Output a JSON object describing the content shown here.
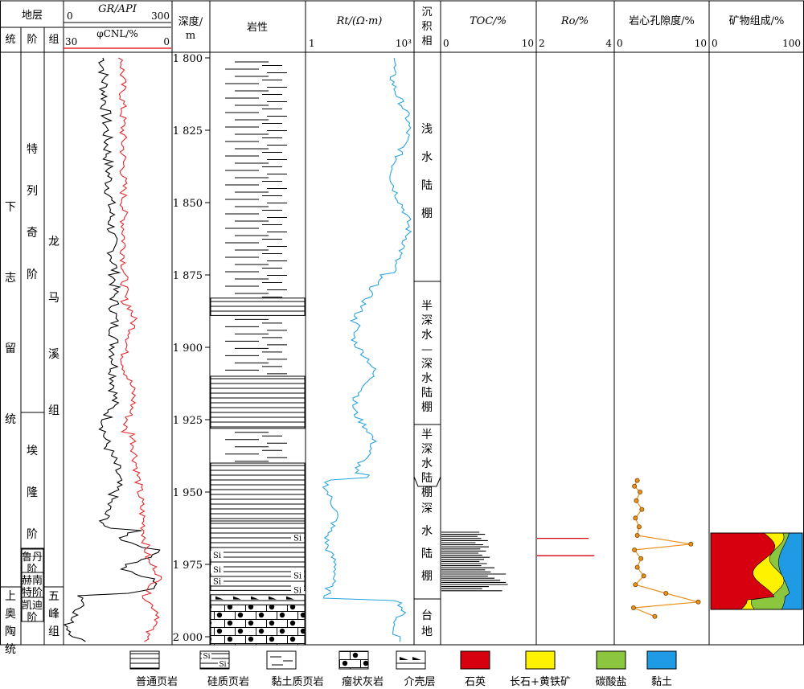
{
  "header": {
    "stratum": "地层",
    "series_col": "统",
    "stage_col": "阶",
    "formation_col": "组",
    "gr_label": "GR/API",
    "gr_min": "0",
    "gr_max": "300",
    "cnl_label": "φCNL/%",
    "cnl_min": "30",
    "cnl_max": "0",
    "depth_label_1": "深度/",
    "depth_label_2": "m",
    "lithology": "岩性",
    "rt_label": "Rt/(Ω·m)",
    "rt_min": "1",
    "rt_max": "10³",
    "facies_1": "沉",
    "facies_2": "积",
    "facies_3": "相",
    "toc_label": "TOC/%",
    "toc_min": "0",
    "toc_max": "10",
    "ro_label": "Ro/%",
    "ro_min": "2",
    "ro_max": "4",
    "porosity_label": "岩心孔隙度/%",
    "por_min": "0",
    "por_max": "10",
    "mineral_label": "矿物组成/%",
    "min_min": "0",
    "min_max": "100"
  },
  "strat": {
    "series_lower_silurian": "下志留统",
    "series_upper_ordovician": "上奥陶统",
    "stage_telychian": "特列奇阶",
    "stage_aeronian": "埃隆阶",
    "stage_rhuddanian": "鲁丹阶",
    "stage_hirnantian": "赫南特阶",
    "stage_katian": "凯迪阶",
    "formation_longmaxi": "龙马溪组",
    "formation_wufeng": "五峰组"
  },
  "depth_ticks": [
    "1 800",
    "1 825",
    "1 850",
    "1 875",
    "1 900",
    "1 925",
    "1 950",
    "1 975",
    "2 000"
  ],
  "facies": {
    "shallow_shelf": "浅水陆棚",
    "semi_deep_to_deep": "半深水—深水陆棚",
    "semi_deep": "半深水陆棚",
    "deep_shelf": "深水陆棚",
    "platform": "台地"
  },
  "si_label": "Si",
  "legend": {
    "normal_shale": "普通页岩",
    "siliceous_shale": "硅质页岩",
    "argillaceous_shale": "黏土质页岩",
    "nodular_limestone": "瘤状灰岩",
    "shell_layer": "介壳层",
    "quartz": "石英",
    "feldspar_pyrite": "长石+黄铁矿",
    "carbonate": "碳酸盐",
    "clay": "黏土"
  },
  "colors": {
    "quartz": "#d7000f",
    "feldspar_pyrite": "#fff200",
    "carbonate": "#8cc63f",
    "clay": "#1f9be6",
    "gr_curve": "#000000",
    "cnl_curve": "#e5252a",
    "rt_curve": "#29a3e0",
    "porosity": "#e8901c",
    "ro_line": "#d7000f"
  },
  "porosity_data": [
    {
      "depth": 1946,
      "por": 2.4
    },
    {
      "depth": 1948,
      "por": 2.1
    },
    {
      "depth": 1950,
      "por": 2.7
    },
    {
      "depth": 1953,
      "por": 2.3
    },
    {
      "depth": 1956,
      "por": 2.9
    },
    {
      "depth": 1959,
      "por": 2.2
    },
    {
      "depth": 1962,
      "por": 2.6
    },
    {
      "depth": 1965,
      "por": 2.4
    },
    {
      "depth": 1968,
      "por": 8.2
    },
    {
      "depth": 1970,
      "por": 2.1
    },
    {
      "depth": 1973,
      "por": 2.8
    },
    {
      "depth": 1976,
      "por": 2.4
    },
    {
      "depth": 1979,
      "por": 3.1
    },
    {
      "depth": 1982,
      "por": 2.2
    },
    {
      "depth": 1985,
      "por": 5.5
    },
    {
      "depth": 1988,
      "por": 9.0
    },
    {
      "depth": 1990,
      "por": 2.0
    },
    {
      "depth": 1993,
      "por": 4.3
    }
  ],
  "ro_data": [
    {
      "depth": 1966,
      "ro": 3.35
    },
    {
      "depth": 1972,
      "ro": 3.5
    }
  ]
}
